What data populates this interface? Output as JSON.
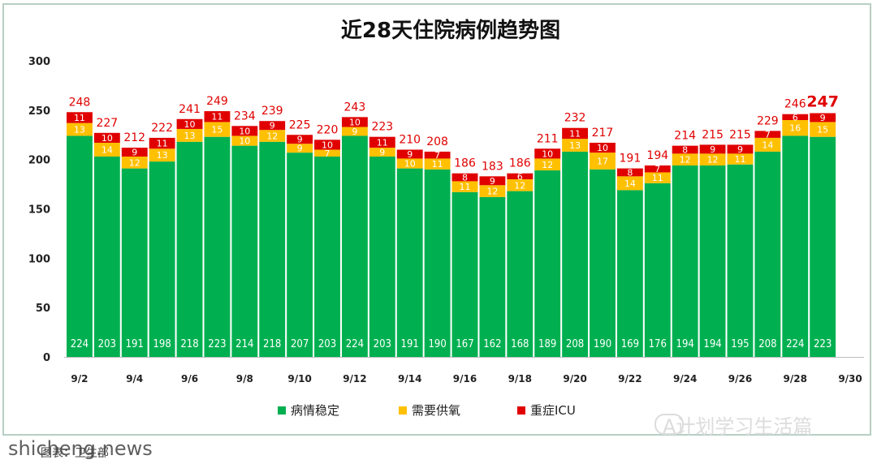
{
  "chart_data": {
    "type": "bar",
    "stacked": true,
    "title": "近28天住院病例趋势图",
    "xlabel": "",
    "ylabel": "",
    "ylim": [
      0,
      300
    ],
    "yticks": [
      0,
      50,
      100,
      150,
      200,
      250,
      300
    ],
    "grid": false,
    "legend_position": "bottom",
    "categories": [
      "9/2",
      "9/3",
      "9/4",
      "9/5",
      "9/6",
      "9/7",
      "9/8",
      "9/9",
      "9/10",
      "9/11",
      "9/12",
      "9/13",
      "9/14",
      "9/15",
      "9/16",
      "9/17",
      "9/18",
      "9/19",
      "9/20",
      "9/21",
      "9/22",
      "9/23",
      "9/24",
      "9/25",
      "9/26",
      "9/27",
      "9/28",
      "9/29",
      "9/30"
    ],
    "tick_labels": [
      "9/2",
      "9/4",
      "9/6",
      "9/8",
      "9/10",
      "9/12",
      "9/14",
      "9/16",
      "9/18",
      "9/20",
      "9/22",
      "9/24",
      "9/26",
      "9/28",
      "9/30"
    ],
    "series": [
      {
        "name": "病情稳定",
        "color": "#00b050",
        "values": [
          224,
          203,
          191,
          198,
          218,
          223,
          214,
          218,
          207,
          203,
          224,
          203,
          191,
          190,
          167,
          162,
          168,
          189,
          208,
          190,
          169,
          176,
          194,
          194,
          195,
          208,
          224,
          223,
          null
        ]
      },
      {
        "name": "需要供氧",
        "color": "#ffc000",
        "values": [
          13,
          14,
          12,
          13,
          13,
          15,
          10,
          12,
          9,
          7,
          9,
          9,
          10,
          11,
          11,
          12,
          12,
          12,
          13,
          17,
          14,
          11,
          12,
          12,
          11,
          14,
          16,
          15,
          null
        ]
      },
      {
        "name": "重症ICU",
        "color": "#e00000",
        "values": [
          11,
          10,
          9,
          11,
          10,
          11,
          10,
          9,
          9,
          10,
          10,
          11,
          9,
          7,
          8,
          9,
          6,
          10,
          11,
          10,
          8,
          7,
          8,
          9,
          9,
          7,
          6,
          9,
          null
        ]
      }
    ],
    "totals": [
      248,
      227,
      212,
      222,
      241,
      249,
      234,
      239,
      225,
      220,
      243,
      223,
      210,
      208,
      186,
      183,
      186,
      211,
      232,
      217,
      191,
      194,
      214,
      215,
      215,
      229,
      246,
      247,
      null
    ]
  },
  "watermark": "A计划学习生活篇",
  "site": "shicheng.news",
  "caption": "图表：卫生部"
}
